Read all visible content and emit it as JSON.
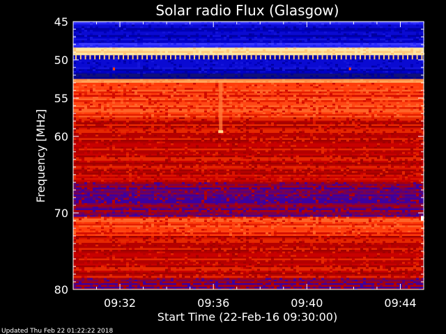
{
  "chart_data": {
    "type": "heatmap",
    "title": "Solar radio Flux (Glasgow)",
    "ylabel": "Frequency [MHz]",
    "xlabel": "Start Time (22-Feb-16 09:30:00)",
    "footer": "Updated Thu Feb 22 01:22:22 2018",
    "y_ticks": [
      "45",
      "50",
      "55",
      "60",
      "70",
      "80"
    ],
    "x_ticks": [
      "09:32",
      "09:36",
      "09:40",
      "09:44"
    ],
    "x_tick_minutes": [
      32,
      36,
      40,
      44
    ],
    "x_range_minutes": [
      30,
      45
    ],
    "y_range_mhz": [
      45,
      80
    ],
    "colors": {
      "background": "#000000",
      "axis": "#ffffff",
      "low": "#0000c8",
      "mid": "#cc0000",
      "high": "#ffa040"
    },
    "bands": [
      {
        "from": 45.0,
        "to": 45.4,
        "level": "blue-light"
      },
      {
        "from": 45.4,
        "to": 47.8,
        "level": "blue"
      },
      {
        "from": 47.8,
        "to": 48.4,
        "level": "blue-light"
      },
      {
        "from": 48.4,
        "to": 49.4,
        "level": "white-hot"
      },
      {
        "from": 49.4,
        "to": 51.8,
        "level": "blue"
      },
      {
        "from": 51.8,
        "to": 52.5,
        "level": "blue-dark"
      },
      {
        "from": 52.5,
        "to": 53.0,
        "level": "hot"
      },
      {
        "from": 53.0,
        "to": 57.5,
        "level": "red-hot"
      },
      {
        "from": 57.5,
        "to": 66.0,
        "level": "red"
      },
      {
        "from": 66.0,
        "to": 70.5,
        "level": "red-blue"
      },
      {
        "from": 70.5,
        "to": 73.0,
        "level": "red-hot"
      },
      {
        "from": 73.0,
        "to": 78.5,
        "level": "red"
      },
      {
        "from": 78.5,
        "to": 80.0,
        "level": "red-blue"
      }
    ]
  }
}
